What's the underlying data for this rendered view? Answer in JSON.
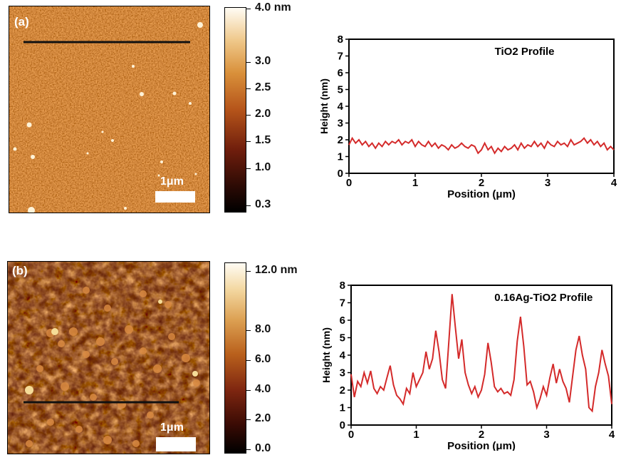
{
  "panels": [
    {
      "tag": "(a)",
      "scale_bar_label": "1μm",
      "colorbar": {
        "labels": [
          {
            "text": "4.0 nm",
            "value": 4.0
          },
          {
            "text": "3.0",
            "value": 3.0
          },
          {
            "text": "2.5",
            "value": 2.5
          },
          {
            "text": "2.0",
            "value": 2.0
          },
          {
            "text": "1.5",
            "value": 1.5
          },
          {
            "text": "1.0",
            "value": 1.0
          },
          {
            "text": "0.3",
            "value": 0.3
          }
        ]
      }
    },
    {
      "tag": "(b)",
      "scale_bar_label": "1μm",
      "colorbar": {
        "labels": [
          {
            "text": "12.0 nm",
            "value": 12.0
          },
          {
            "text": "8.0",
            "value": 8.0
          },
          {
            "text": "6.0",
            "value": 6.0
          },
          {
            "text": "4.0",
            "value": 4.0
          },
          {
            "text": "2.0",
            "value": 2.0
          },
          {
            "text": "0.0",
            "value": 0.0
          }
        ]
      }
    }
  ],
  "chart_data": [
    {
      "type": "line",
      "title": "TiO2 Profile",
      "xlabel": "Position (μm)",
      "ylabel": "Height (nm)",
      "xlim": [
        0,
        4
      ],
      "ylim": [
        0,
        8
      ],
      "xticks": [
        0,
        1,
        2,
        3,
        4
      ],
      "yticks": [
        0,
        1,
        2,
        3,
        4,
        5,
        6,
        7,
        8
      ],
      "color": "#d42a2a",
      "series": [
        {
          "x": [
            0,
            0.05,
            0.1,
            0.15,
            0.2,
            0.25,
            0.3,
            0.35,
            0.4,
            0.45,
            0.5,
            0.55,
            0.6,
            0.65,
            0.7,
            0.75,
            0.8,
            0.85,
            0.9,
            0.95,
            1.0,
            1.05,
            1.1,
            1.15,
            1.2,
            1.25,
            1.3,
            1.35,
            1.4,
            1.45,
            1.5,
            1.55,
            1.6,
            1.65,
            1.7,
            1.75,
            1.8,
            1.85,
            1.9,
            1.95,
            2.0,
            2.05,
            2.1,
            2.15,
            2.2,
            2.25,
            2.3,
            2.35,
            2.4,
            2.45,
            2.5,
            2.55,
            2.6,
            2.65,
            2.7,
            2.75,
            2.8,
            2.85,
            2.9,
            2.95,
            3.0,
            3.05,
            3.1,
            3.15,
            3.2,
            3.25,
            3.3,
            3.35,
            3.4,
            3.45,
            3.5,
            3.55,
            3.6,
            3.65,
            3.7,
            3.75,
            3.8,
            3.85,
            3.9,
            3.95,
            4.0
          ],
          "y": [
            1.7,
            2.1,
            1.8,
            2.0,
            1.7,
            1.9,
            1.6,
            1.8,
            1.5,
            1.8,
            1.6,
            1.9,
            1.7,
            1.9,
            1.8,
            2.0,
            1.7,
            1.9,
            1.8,
            2.0,
            1.6,
            1.9,
            1.7,
            1.6,
            1.9,
            1.6,
            1.8,
            1.5,
            1.7,
            1.6,
            1.4,
            1.7,
            1.5,
            1.6,
            1.8,
            1.6,
            1.5,
            1.7,
            1.6,
            1.2,
            1.4,
            1.8,
            1.4,
            1.6,
            1.2,
            1.5,
            1.3,
            1.6,
            1.4,
            1.5,
            1.7,
            1.4,
            1.8,
            1.5,
            1.7,
            1.6,
            1.9,
            1.6,
            1.8,
            1.5,
            1.9,
            1.7,
            1.6,
            1.9,
            1.7,
            1.8,
            1.6,
            2.0,
            1.7,
            1.8,
            1.9,
            2.1,
            1.8,
            2.0,
            1.7,
            1.9,
            1.6,
            1.8,
            1.4,
            1.6,
            1.4
          ]
        }
      ]
    },
    {
      "type": "line",
      "title": "0.16Ag-TiO2 Profile",
      "xlabel": "Position (μm)",
      "ylabel": "Height (nm)",
      "xlim": [
        0,
        4
      ],
      "ylim": [
        0,
        8
      ],
      "xticks": [
        0,
        1,
        2,
        3,
        4
      ],
      "yticks": [
        0,
        1,
        2,
        3,
        4,
        5,
        6,
        7,
        8
      ],
      "color": "#d42a2a",
      "series": [
        {
          "x": [
            0,
            0.05,
            0.1,
            0.15,
            0.2,
            0.25,
            0.3,
            0.35,
            0.4,
            0.45,
            0.5,
            0.55,
            0.6,
            0.65,
            0.7,
            0.75,
            0.8,
            0.85,
            0.9,
            0.95,
            1.0,
            1.05,
            1.1,
            1.15,
            1.2,
            1.25,
            1.3,
            1.35,
            1.4,
            1.45,
            1.5,
            1.55,
            1.6,
            1.65,
            1.7,
            1.75,
            1.8,
            1.85,
            1.9,
            1.95,
            2.0,
            2.05,
            2.1,
            2.15,
            2.2,
            2.25,
            2.3,
            2.35,
            2.4,
            2.45,
            2.5,
            2.55,
            2.6,
            2.65,
            2.7,
            2.75,
            2.8,
            2.85,
            2.9,
            2.95,
            3.0,
            3.05,
            3.1,
            3.15,
            3.2,
            3.25,
            3.3,
            3.35,
            3.4,
            3.45,
            3.5,
            3.55,
            3.6,
            3.65,
            3.7,
            3.75,
            3.8,
            3.85,
            3.9,
            3.95,
            4.0
          ],
          "y": [
            2.9,
            1.6,
            2.5,
            2.2,
            3.0,
            2.4,
            3.1,
            2.1,
            1.8,
            2.2,
            2.0,
            2.7,
            3.4,
            2.3,
            1.7,
            1.5,
            1.2,
            2.1,
            1.8,
            3.0,
            2.2,
            2.6,
            3.0,
            4.2,
            3.2,
            3.8,
            5.4,
            4.2,
            2.6,
            2.1,
            4.8,
            7.5,
            5.6,
            3.8,
            4.9,
            3.0,
            2.3,
            1.8,
            2.2,
            1.6,
            2.0,
            2.9,
            4.7,
            3.6,
            2.2,
            1.9,
            2.1,
            1.8,
            1.9,
            1.7,
            2.6,
            4.8,
            6.2,
            4.5,
            2.3,
            2.5,
            1.9,
            1.0,
            1.5,
            2.2,
            1.7,
            2.7,
            3.5,
            2.4,
            3.2,
            2.5,
            2.1,
            1.3,
            2.8,
            4.3,
            5.1,
            4.0,
            3.2,
            1.0,
            0.8,
            2.2,
            3.0,
            4.3,
            3.5,
            2.8,
            1.2
          ]
        }
      ]
    }
  ]
}
